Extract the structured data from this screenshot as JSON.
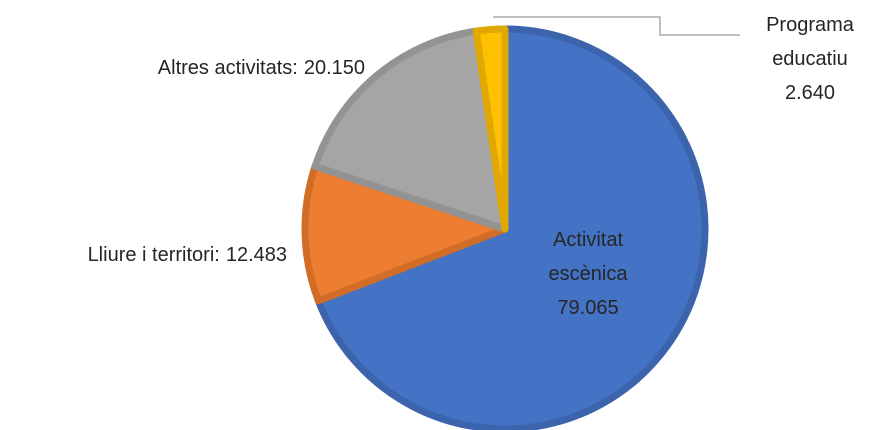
{
  "chart_data": {
    "type": "pie",
    "categories": [
      "Activitat escènica",
      "Lliure i territori",
      "Altres activitats",
      "Programa educatiu"
    ],
    "values": [
      79065,
      12483,
      20150,
      2640
    ],
    "value_labels": [
      "79.065",
      "12.483",
      "20.150",
      "2.640"
    ],
    "label_separator": ":",
    "colors": [
      "#4472c4",
      "#ed7d31",
      "#a5a5a5",
      "#ffc000"
    ],
    "borders": [
      "#3b64ad",
      "#d26d28",
      "#939393",
      "#e0a800"
    ]
  }
}
